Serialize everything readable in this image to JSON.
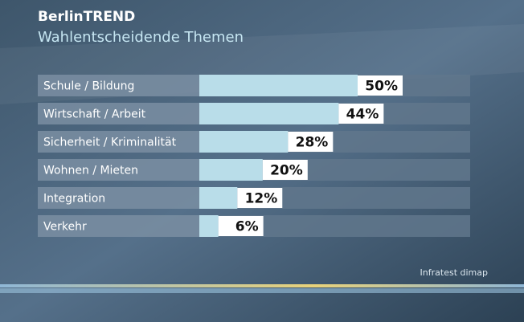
{
  "chart_data": {
    "type": "bar",
    "orientation": "horizontal",
    "title": "BerlinTREND",
    "subtitle": "Wahlentscheidende Themen",
    "categories": [
      "Schule / Bildung",
      "Wirtschaft / Arbeit",
      "Sicherheit / Kriminalität",
      "Wohnen / Mieten",
      "Integration",
      "Verkehr"
    ],
    "values": [
      50,
      44,
      28,
      20,
      12,
      6
    ],
    "value_labels": [
      "50%",
      "44%",
      "28%",
      "20%",
      "12%",
      "6%"
    ],
    "color": "#b9dde9",
    "source": "Infratest dimap"
  }
}
